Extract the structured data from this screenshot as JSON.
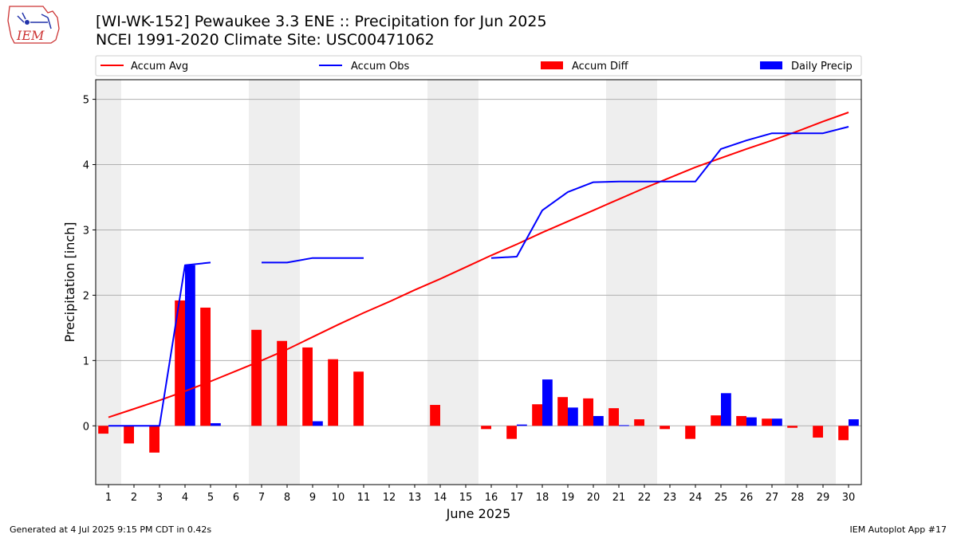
{
  "header": {
    "title_line1": "[WI-WK-152] Pewaukee 3.3 ENE :: Precipitation for Jun 2025",
    "title_line2": "NCEI 1991-2020 Climate Site: USC00471062",
    "logo_text": "IEM"
  },
  "footer": {
    "generated": "Generated at 4 Jul 2025 9:15 PM CDT in 0.42s",
    "app": "IEM Autoplot App #17"
  },
  "colors": {
    "accum_avg": "#ff0000",
    "accum_obs": "#0000ff",
    "accum_diff": "#ff0000",
    "daily_precip": "#0000ff",
    "weekend_band": "#eeeeee",
    "grid": "#b0b0b0"
  },
  "chart_data": {
    "type": "bar",
    "xlabel": "June 2025",
    "ylabel": "Precipitation [inch]",
    "xlim": [
      0.5,
      30.5
    ],
    "ylim": [
      -0.9,
      5.3
    ],
    "yticks": [
      0,
      1,
      2,
      3,
      4,
      5
    ],
    "x": [
      1,
      2,
      3,
      4,
      5,
      6,
      7,
      8,
      9,
      10,
      11,
      12,
      13,
      14,
      15,
      16,
      17,
      18,
      19,
      20,
      21,
      22,
      23,
      24,
      25,
      26,
      27,
      28,
      29,
      30
    ],
    "legend": [
      "Accum Avg",
      "Accum Obs",
      "Accum Diff",
      "Daily Precip"
    ],
    "legend_position": "top",
    "grid": true,
    "weekend_shading_days": [
      1,
      7,
      8,
      14,
      15,
      21,
      22,
      28,
      29
    ],
    "series": [
      {
        "name": "Accum Avg",
        "type": "line",
        "values": [
          0.13,
          0.26,
          0.39,
          0.53,
          0.68,
          0.84,
          1.0,
          1.17,
          1.36,
          1.55,
          1.73,
          1.9,
          2.08,
          2.25,
          2.43,
          2.61,
          2.78,
          2.96,
          3.13,
          3.3,
          3.47,
          3.64,
          3.8,
          3.96,
          4.1,
          4.24,
          4.37,
          4.51,
          4.66,
          4.8
        ]
      },
      {
        "name": "Accum Obs",
        "type": "line",
        "values": [
          0.0,
          0.0,
          0.0,
          2.46,
          2.5,
          null,
          2.5,
          2.5,
          2.57,
          2.57,
          2.57,
          null,
          null,
          null,
          null,
          2.57,
          2.59,
          3.3,
          3.58,
          3.73,
          3.74,
          3.74,
          3.74,
          3.74,
          4.24,
          4.37,
          4.48,
          4.48,
          4.48,
          4.58
        ]
      },
      {
        "name": "Accum Diff",
        "type": "bar",
        "values": [
          -0.12,
          -0.27,
          -0.41,
          1.92,
          1.81,
          null,
          1.47,
          1.3,
          1.2,
          1.02,
          0.83,
          null,
          null,
          0.32,
          null,
          -0.05,
          -0.2,
          0.33,
          0.44,
          0.42,
          0.27,
          0.1,
          -0.05,
          -0.2,
          0.16,
          0.15,
          0.11,
          -0.03,
          -0.18,
          -0.22
        ]
      },
      {
        "name": "Daily Precip",
        "type": "bar",
        "values": [
          0,
          0,
          0,
          2.46,
          0.04,
          null,
          null,
          null,
          0.07,
          0,
          0,
          null,
          null,
          null,
          null,
          null,
          0.02,
          0.71,
          0.28,
          0.15,
          0.01,
          0,
          0,
          0,
          0.5,
          0.13,
          0.11,
          0,
          0,
          0.1
        ]
      }
    ]
  }
}
